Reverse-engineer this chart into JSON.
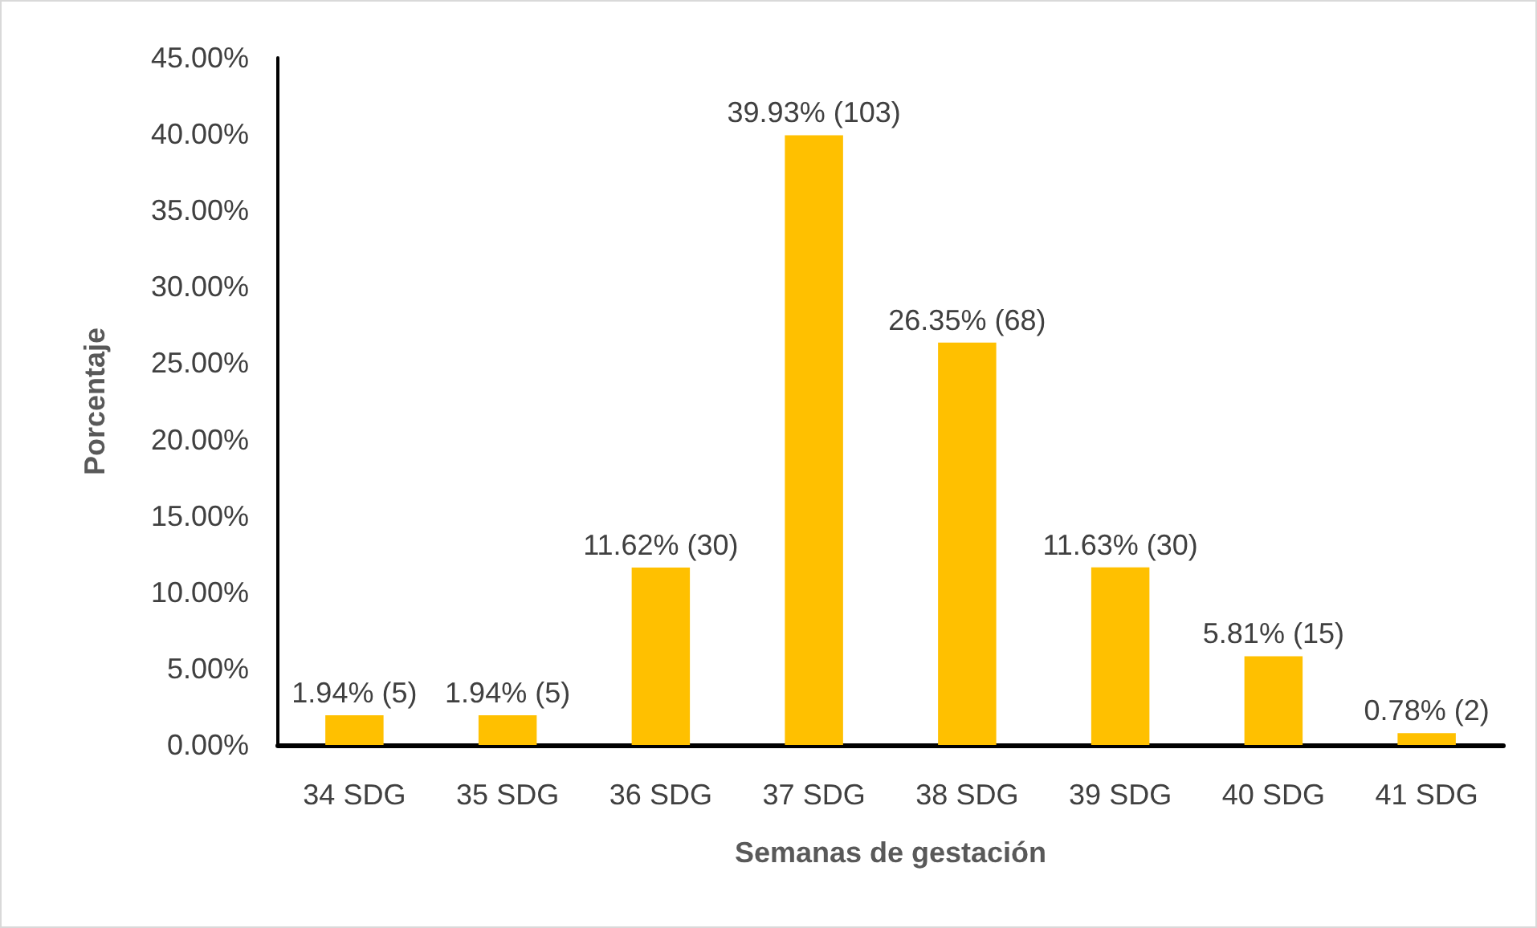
{
  "chart_data": {
    "type": "bar",
    "xlabel": "Semanas de gestación",
    "ylabel": "Porcentaje",
    "categories": [
      "34 SDG",
      "35 SDG",
      "36 SDG",
      "37 SDG",
      "38 SDG",
      "39 SDG",
      "40 SDG",
      "41 SDG"
    ],
    "values": [
      1.94,
      1.94,
      11.62,
      39.93,
      26.35,
      11.63,
      5.81,
      0.78
    ],
    "value_labels": [
      "1.94% (5)",
      "1.94% (5)",
      "11.62% (30)",
      "39.93% (103)",
      "26.35% (68)",
      "11.63% (30)",
      "5.81% (15)",
      "0.78% (2)"
    ],
    "color": "#ffc000",
    "ylim": [
      0,
      45
    ],
    "yticks": [
      {
        "value": 0,
        "label": "0.00%"
      },
      {
        "value": 5,
        "label": "5.00%"
      },
      {
        "value": 10,
        "label": "10.00%"
      },
      {
        "value": 15,
        "label": "15.00%"
      },
      {
        "value": 20,
        "label": "20.00%"
      },
      {
        "value": 25,
        "label": "25.00%"
      },
      {
        "value": 30,
        "label": "30.00%"
      },
      {
        "value": 35,
        "label": "35.00%"
      },
      {
        "value": 40,
        "label": "40.00%"
      },
      {
        "value": 45,
        "label": "45.00%"
      }
    ],
    "grid": false
  }
}
